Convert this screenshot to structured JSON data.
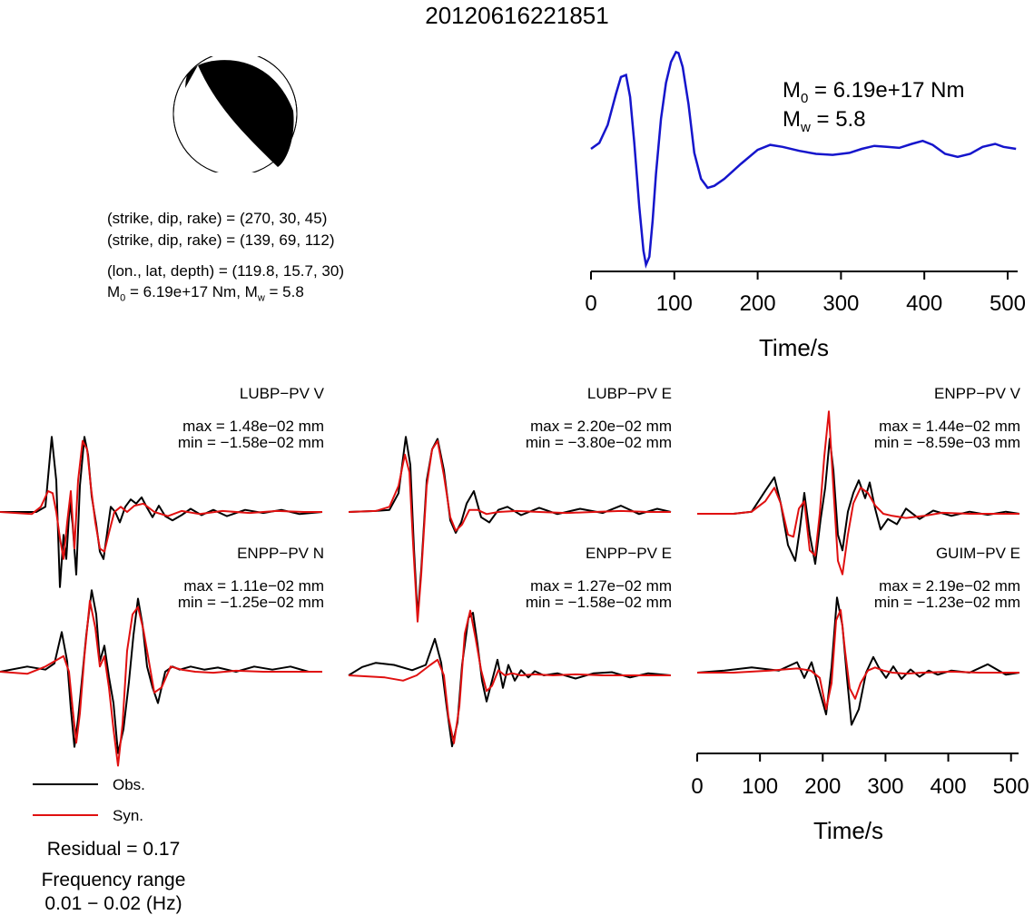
{
  "event_id": "20120616221851",
  "mechanism": {
    "beachball_icon": "focal-mechanism-beachball",
    "line1": "(strike, dip, rake) = (270, 30, 45)",
    "line2": "(strike, dip, rake) = (139, 69, 112)",
    "line3": "(lon., lat, depth) = (119.8, 15.7, 30)",
    "m0_prefix": "M",
    "m0_sub": "0",
    "m0_value": " = 6.19e+17 Nm, M",
    "mw_sub": "w",
    "mw_value": " = 5.8"
  },
  "stf": {
    "m0_sym": "M",
    "m0_sub": "0",
    "m0_text": " = 6.19e+17 Nm",
    "mw_sym": "M",
    "mw_sub": "w",
    "mw_text": " = 5.8",
    "xlabel": "Time/s"
  },
  "time_axis_bottom": {
    "xlabel": "Time/s"
  },
  "legend": {
    "obs": "Obs.",
    "syn": "Syn."
  },
  "residual": "Residual = 0.17",
  "frequency": {
    "label": "Frequency range",
    "value": "0.01 − 0.02 (Hz)"
  },
  "colors": {
    "obs": "#000000",
    "syn": "#e01010",
    "stf": "#1515cc"
  },
  "stations": [
    {
      "name": "LUBP−PV V",
      "max": "max = 1.48e−02 mm",
      "min": "min = −1.58e−02 mm"
    },
    {
      "name": "LUBP−PV E",
      "max": "max = 2.20e−02 mm",
      "min": "min = −3.80e−02 mm"
    },
    {
      "name": "ENPP−PV V",
      "max": "max = 1.44e−02 mm",
      "min": "min = −8.59e−03 mm"
    },
    {
      "name": "ENPP−PV N",
      "max": "max = 1.11e−02 mm",
      "min": "min = −1.25e−02 mm"
    },
    {
      "name": "ENPP−PV E",
      "max": "max = 1.27e−02 mm",
      "min": "min = −1.58e−02 mm"
    },
    {
      "name": "GUIM−PV E",
      "max": "max = 2.19e−02 mm",
      "min": "min = −1.23e−02 mm"
    }
  ],
  "chart_data": [
    {
      "type": "line",
      "title": "",
      "xlabel": "Time/s",
      "ylabel": "",
      "xlim": [
        0,
        512
      ],
      "ylim": [
        -1.0,
        1.0
      ],
      "xticks": [
        0,
        100,
        200,
        300,
        400,
        500
      ],
      "series": [
        {
          "x": [
            0,
            10,
            20,
            30,
            36,
            42,
            47,
            52,
            58,
            63,
            66,
            70,
            74,
            78,
            84,
            90,
            96,
            102,
            105,
            110,
            117,
            124,
            132,
            140,
            148,
            160,
            180,
            200,
            215,
            230,
            250,
            270,
            290,
            310,
            325,
            340,
            355,
            370,
            385,
            398,
            410,
            425,
            440,
            455,
            470,
            485,
            495,
            510
          ],
          "y": [
            0.0,
            0.06,
            0.24,
            0.55,
            0.72,
            0.74,
            0.52,
            0.06,
            -0.58,
            -1.02,
            -1.16,
            -1.08,
            -0.72,
            -0.25,
            0.3,
            0.66,
            0.87,
            0.97,
            0.96,
            0.82,
            0.45,
            -0.04,
            -0.3,
            -0.39,
            -0.37,
            -0.3,
            -0.15,
            -0.01,
            0.04,
            0.02,
            -0.02,
            -0.05,
            -0.06,
            -0.04,
            0.0,
            0.03,
            0.02,
            0.01,
            0.05,
            0.08,
            0.04,
            -0.05,
            -0.08,
            -0.05,
            0.02,
            0.05,
            0.02,
            0.0
          ]
        }
      ]
    },
    {
      "type": "line",
      "title": "LUBP−PV V",
      "series": [
        {
          "name": "Obs.",
          "x": [
            0,
            40,
            50,
            57,
            62,
            66,
            70,
            73,
            77,
            80,
            84,
            88,
            93,
            97,
            101,
            106,
            110,
            114,
            118,
            122,
            127,
            132,
            138,
            144,
            150,
            156,
            162,
            168,
            175,
            182,
            190,
            200,
            210,
            222,
            235,
            250,
            270,
            290,
            310,
            330,
            355
          ],
          "y": [
            0.0,
            0.0,
            0.05,
            0.72,
            0.3,
            -0.72,
            -0.22,
            -0.45,
            0.1,
            -0.12,
            -0.6,
            0.25,
            0.72,
            0.55,
            0.15,
            -0.12,
            -0.38,
            -0.45,
            -0.2,
            0.05,
            0.0,
            -0.1,
            0.05,
            0.12,
            0.08,
            0.14,
            0.04,
            -0.05,
            0.06,
            -0.04,
            -0.08,
            -0.03,
            0.03,
            -0.03,
            0.02,
            -0.04,
            0.02,
            -0.01,
            0.02,
            -0.02,
            0.0
          ]
        },
        {
          "name": "Syn.",
          "x": [
            0,
            35,
            45,
            53,
            58,
            62,
            66,
            70,
            74,
            78,
            82,
            86,
            91,
            96,
            100,
            105,
            110,
            115,
            120,
            126,
            133,
            140,
            148,
            158,
            170,
            185,
            200,
            220,
            245,
            275,
            305,
            335,
            355
          ],
          "y": [
            0.0,
            -0.02,
            0.05,
            0.2,
            0.18,
            0.0,
            -0.25,
            -0.45,
            -0.1,
            0.2,
            -0.35,
            0.3,
            0.68,
            0.6,
            0.25,
            -0.1,
            -0.35,
            -0.38,
            -0.2,
            0.0,
            0.05,
            0.0,
            0.06,
            0.08,
            0.0,
            -0.04,
            0.01,
            -0.02,
            0.01,
            -0.01,
            0.01,
            0.0,
            0.0
          ]
        }
      ]
    },
    {
      "type": "line",
      "title": "LUBP−PV E",
      "series": [
        {
          "name": "Obs.",
          "x": [
            0,
            30,
            45,
            55,
            63,
            68,
            72,
            76,
            80,
            86,
            92,
            98,
            105,
            112,
            118,
            124,
            130,
            138,
            146,
            155,
            165,
            175,
            190,
            210,
            230,
            255,
            280,
            300,
            320,
            340,
            355
          ],
          "y": [
            0.0,
            0.01,
            0.02,
            0.18,
            0.72,
            0.45,
            -0.35,
            -1.0,
            -0.55,
            0.3,
            0.6,
            0.7,
            0.4,
            -0.08,
            -0.2,
            -0.1,
            0.08,
            0.2,
            -0.05,
            -0.1,
            0.02,
            0.05,
            -0.03,
            0.04,
            -0.02,
            0.03,
            -0.01,
            0.06,
            -0.02,
            0.03,
            0.0
          ]
        },
        {
          "name": "Syn.",
          "x": [
            0,
            30,
            45,
            55,
            62,
            67,
            71,
            76,
            80,
            86,
            92,
            98,
            105,
            112,
            118,
            125,
            133,
            142,
            152,
            165,
            185,
            210,
            240,
            270,
            300,
            330,
            355
          ],
          "y": [
            0.0,
            0.01,
            0.05,
            0.25,
            0.55,
            0.38,
            -0.3,
            -1.05,
            -0.6,
            0.25,
            0.6,
            0.68,
            0.35,
            -0.05,
            -0.18,
            -0.12,
            0.02,
            0.02,
            -0.02,
            0.0,
            0.01,
            0.0,
            -0.01,
            0.0,
            0.01,
            0.0,
            0.0
          ]
        }
      ]
    },
    {
      "type": "line",
      "title": "ENPP−PV V",
      "series": [
        {
          "name": "Obs.",
          "x": [
            0,
            40,
            60,
            75,
            85,
            92,
            100,
            108,
            113,
            118,
            124,
            130,
            136,
            141,
            146,
            150,
            155,
            160,
            166,
            172,
            178,
            185,
            190,
            196,
            202,
            210,
            220,
            230,
            245,
            260,
            280,
            300,
            320,
            340,
            355
          ],
          "y": [
            0.0,
            0.0,
            0.02,
            0.22,
            0.35,
            0.1,
            -0.3,
            -0.45,
            -0.15,
            0.2,
            -0.2,
            -0.48,
            -0.05,
            0.25,
            0.72,
            0.42,
            -0.2,
            -0.35,
            0.02,
            0.2,
            0.32,
            0.15,
            0.3,
            0.05,
            -0.15,
            -0.05,
            -0.1,
            0.05,
            -0.05,
            0.03,
            -0.02,
            0.02,
            -0.01,
            0.02,
            0.0
          ]
        },
        {
          "name": "Syn.",
          "x": [
            0,
            40,
            60,
            75,
            85,
            92,
            100,
            106,
            112,
            118,
            124,
            130,
            135,
            140,
            145,
            150,
            155,
            160,
            166,
            172,
            180,
            188,
            196,
            205,
            215,
            230,
            250,
            270,
            300,
            330,
            355
          ],
          "y": [
            0.0,
            0.0,
            0.02,
            0.12,
            0.25,
            0.1,
            -0.2,
            -0.22,
            0.05,
            0.12,
            -0.35,
            -0.4,
            0.0,
            0.55,
            0.98,
            0.25,
            -0.45,
            -0.58,
            -0.2,
            0.1,
            0.25,
            0.2,
            0.08,
            0.0,
            -0.02,
            -0.04,
            -0.02,
            0.01,
            0.0,
            0.0,
            0.0
          ]
        }
      ]
    },
    {
      "type": "line",
      "title": "ENPP−PV N",
      "series": [
        {
          "name": "Obs.",
          "x": [
            0,
            30,
            50,
            60,
            68,
            74,
            78,
            82,
            86,
            90,
            95,
            101,
            106,
            110,
            115,
            120,
            125,
            130,
            136,
            142,
            147,
            152,
            157,
            162,
            168,
            174,
            182,
            190,
            198,
            210,
            225,
            240,
            260,
            280,
            300,
            320,
            340,
            355
          ],
          "y": [
            0.0,
            0.05,
            0.02,
            0.08,
            0.38,
            0.1,
            -0.35,
            -0.72,
            -0.45,
            -0.1,
            0.35,
            0.78,
            0.55,
            0.1,
            0.25,
            -0.05,
            -0.3,
            -0.78,
            -0.55,
            -0.1,
            0.35,
            0.7,
            0.45,
            0.05,
            -0.15,
            -0.3,
            0.0,
            0.05,
            0.02,
            0.05,
            0.02,
            0.04,
            0.0,
            0.05,
            0.02,
            0.05,
            0.0,
            0.0
          ]
        },
        {
          "name": "Syn.",
          "x": [
            0,
            30,
            50,
            60,
            70,
            76,
            80,
            84,
            88,
            93,
            99,
            105,
            110,
            115,
            120,
            125,
            130,
            135,
            140,
            146,
            152,
            158,
            164,
            170,
            178,
            188,
            200,
            215,
            235,
            260,
            290,
            320,
            355
          ],
          "y": [
            0.0,
            -0.02,
            0.05,
            0.1,
            0.15,
            0.0,
            -0.35,
            -0.68,
            -0.4,
            0.15,
            0.68,
            0.42,
            0.05,
            0.15,
            -0.15,
            -0.55,
            -0.9,
            -0.5,
            0.2,
            0.55,
            0.62,
            0.4,
            0.1,
            -0.2,
            -0.15,
            0.05,
            0.02,
            0.0,
            -0.01,
            0.01,
            0.0,
            0.0,
            0.0
          ]
        }
      ]
    },
    {
      "type": "line",
      "title": "ENPP−PV E",
      "series": [
        {
          "name": "Obs.",
          "x": [
            0,
            15,
            30,
            50,
            70,
            85,
            95,
            102,
            108,
            114,
            120,
            125,
            132,
            137,
            142,
            147,
            152,
            158,
            164,
            170,
            176,
            183,
            190,
            198,
            205,
            215,
            230,
            250,
            270,
            290,
            310,
            330,
            355
          ],
          "y": [
            0.0,
            0.08,
            0.12,
            0.1,
            0.05,
            0.1,
            0.35,
            0.12,
            -0.3,
            -0.68,
            -0.45,
            0.1,
            0.55,
            0.6,
            0.3,
            -0.05,
            -0.25,
            -0.05,
            0.15,
            -0.12,
            0.1,
            -0.05,
            0.05,
            -0.02,
            0.04,
            0.0,
            0.02,
            -0.03,
            0.02,
            0.03,
            -0.02,
            0.02,
            0.0
          ]
        },
        {
          "name": "Syn.",
          "x": [
            0,
            40,
            60,
            75,
            90,
            98,
            105,
            110,
            116,
            122,
            128,
            134,
            140,
            146,
            152,
            158,
            165,
            172,
            180,
            190,
            205,
            225,
            250,
            280,
            310,
            340,
            355
          ],
          "y": [
            0.0,
            -0.02,
            -0.05,
            0.0,
            0.1,
            0.15,
            0.0,
            -0.4,
            -0.65,
            -0.3,
            0.4,
            0.62,
            0.35,
            0.05,
            -0.15,
            -0.1,
            0.05,
            0.0,
            0.02,
            0.0,
            0.01,
            0.0,
            0.01,
            0.0,
            0.0,
            0.0,
            0.0
          ]
        }
      ]
    },
    {
      "type": "line",
      "title": "GUIM−PV E",
      "series": [
        {
          "name": "Obs.",
          "x": [
            0,
            30,
            60,
            90,
            110,
            118,
            126,
            134,
            142,
            148,
            154,
            160,
            165,
            170,
            178,
            186,
            194,
            200,
            208,
            216,
            225,
            235,
            245,
            255,
            265,
            280,
            300,
            320,
            340,
            355
          ],
          "y": [
            0.0,
            0.02,
            0.05,
            0.02,
            0.1,
            -0.05,
            0.1,
            -0.15,
            -0.4,
            0.05,
            0.72,
            0.45,
            -0.05,
            -0.5,
            -0.35,
            0.0,
            0.15,
            0.05,
            -0.05,
            0.06,
            -0.06,
            0.03,
            -0.04,
            0.02,
            -0.02,
            0.02,
            0.0,
            0.08,
            -0.02,
            0.0
          ]
        },
        {
          "name": "Syn.",
          "x": [
            0,
            40,
            80,
            110,
            125,
            135,
            142,
            148,
            153,
            158,
            163,
            168,
            174,
            180,
            188,
            196,
            205,
            215,
            230,
            250,
            280,
            310,
            340,
            355
          ],
          "y": [
            0.0,
            0.0,
            0.02,
            0.04,
            0.02,
            -0.05,
            -0.35,
            -0.1,
            0.5,
            0.6,
            0.2,
            -0.15,
            -0.25,
            -0.1,
            0.02,
            0.05,
            0.02,
            0.0,
            -0.01,
            0.0,
            0.01,
            0.0,
            0.0,
            0.0
          ]
        }
      ]
    },
    {
      "type": "line",
      "title": "",
      "xlabel": "Time/s",
      "xlim": [
        0,
        512
      ],
      "xticks": [
        0,
        100,
        200,
        300,
        400,
        500
      ]
    }
  ]
}
